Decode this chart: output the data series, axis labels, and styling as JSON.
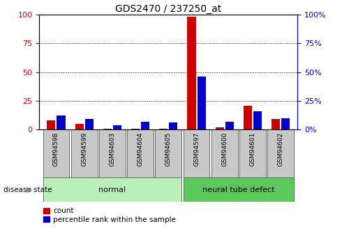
{
  "title": "GDS2470 / 237250_at",
  "samples": [
    "GSM94598",
    "GSM94599",
    "GSM94603",
    "GSM94604",
    "GSM94605",
    "GSM94597",
    "GSM94600",
    "GSM94601",
    "GSM94602"
  ],
  "count_values": [
    8,
    5,
    0.5,
    1,
    1,
    98,
    2,
    21,
    9
  ],
  "percentile_values": [
    12,
    9,
    4,
    7,
    6,
    46,
    7,
    16,
    10
  ],
  "groups": [
    {
      "label": "normal",
      "start": 0,
      "end": 5,
      "color": "#b8f0b8"
    },
    {
      "label": "neural tube defect",
      "start": 5,
      "end": 9,
      "color": "#5cc85c"
    }
  ],
  "ylim": [
    0,
    100
  ],
  "yticks": [
    0,
    25,
    50,
    75,
    100
  ],
  "count_color": "#cc0000",
  "percentile_color": "#0000cc",
  "left_axis_color": "#cc0000",
  "right_axis_color": "#0000cc",
  "disease_state_label": "disease state",
  "tick_bg_color": "#c8c8c8",
  "grid_color": "#000000",
  "bar_width": 0.3,
  "bar_gap": 0.05
}
